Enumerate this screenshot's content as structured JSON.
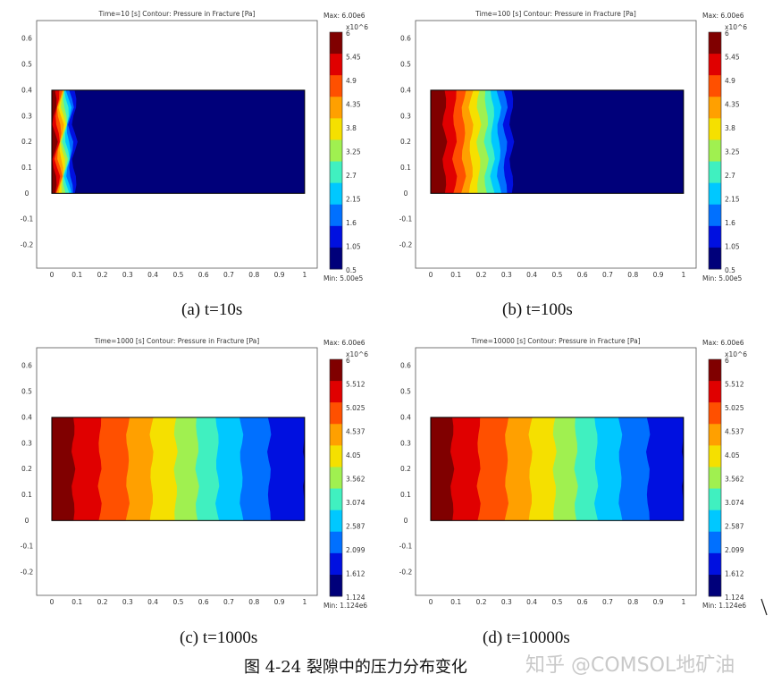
{
  "chart_data": [
    {
      "type": "heatmap",
      "title": "Time=10 [s]   Contour: Pressure in Fracture [Pa]",
      "caption": "(a) t=10s",
      "time_s": 10,
      "max_label": "Max: 6.00e6",
      "min_label": "Min: 5.00e5",
      "scale_exponent": "x10^6",
      "colorbar_ticks": [
        "6",
        "5.45",
        "4.9",
        "4.35",
        "3.8",
        "3.25",
        "2.7",
        "2.15",
        "1.6",
        "1.05",
        "0.5"
      ],
      "xticks": [
        "0",
        "0.1",
        "0.2",
        "0.3",
        "0.4",
        "0.5",
        "0.6",
        "0.7",
        "0.8",
        "0.9",
        "1"
      ],
      "yticks": [
        "0.6",
        "0.5",
        "0.4",
        "0.3",
        "0.2",
        "0.1",
        "0",
        "-0.1",
        "-0.2"
      ],
      "xlim": [
        -0.06,
        1.05
      ],
      "ylim": [
        -0.29,
        0.67
      ],
      "domain_x": [
        0,
        1
      ],
      "domain_y": [
        0,
        0.4
      ],
      "band_edges_x": [
        0.012,
        0.022,
        0.03,
        0.038,
        0.045,
        0.052,
        0.06,
        0.067,
        0.076,
        0.09
      ],
      "front_wiggle": 0.012
    },
    {
      "type": "heatmap",
      "title": "Time=100 [s]   Contour: Pressure in Fracture [Pa]",
      "caption": "(b) t=100s",
      "time_s": 100,
      "max_label": "Max: 6.00e6",
      "min_label": "Min: 5.00e5",
      "scale_exponent": "x10^6",
      "colorbar_ticks": [
        "6",
        "5.45",
        "4.9",
        "4.35",
        "3.8",
        "3.25",
        "2.7",
        "2.15",
        "1.6",
        "1.05",
        "0.5"
      ],
      "xticks": [
        "0",
        "0.1",
        "0.2",
        "0.3",
        "0.4",
        "0.5",
        "0.6",
        "0.7",
        "0.8",
        "0.9",
        "1"
      ],
      "yticks": [
        "0.6",
        "0.5",
        "0.4",
        "0.3",
        "0.2",
        "0.1",
        "0",
        "-0.1",
        "-0.2"
      ],
      "xlim": [
        -0.06,
        1.05
      ],
      "ylim": [
        -0.29,
        0.67
      ],
      "domain_x": [
        0,
        1
      ],
      "domain_y": [
        0,
        0.4
      ],
      "band_edges_x": [
        0.055,
        0.095,
        0.13,
        0.16,
        0.19,
        0.22,
        0.245,
        0.27,
        0.295,
        0.32
      ],
      "front_wiggle": 0.01
    },
    {
      "type": "heatmap",
      "title": "Time=1000 [s]   Contour: Pressure in Fracture [Pa]",
      "caption": "(c) t=1000s",
      "time_s": 1000,
      "max_label": "Max: 6.00e6",
      "min_label": "Min: 1.124e6",
      "scale_exponent": "x10^6",
      "colorbar_ticks": [
        "6",
        "5.512",
        "5.025",
        "4.537",
        "4.05",
        "3.562",
        "3.074",
        "2.587",
        "2.099",
        "1.612",
        "1.124"
      ],
      "xticks": [
        "0",
        "0.1",
        "0.2",
        "0.3",
        "0.4",
        "0.5",
        "0.6",
        "0.7",
        "0.8",
        "0.9",
        "1"
      ],
      "yticks": [
        "0.6",
        "0.5",
        "0.4",
        "0.3",
        "0.2",
        "0.1",
        "0",
        "-0.1",
        "-0.2"
      ],
      "xlim": [
        -0.06,
        1.05
      ],
      "ylim": [
        -0.29,
        0.67
      ],
      "domain_x": [
        0,
        1
      ],
      "domain_y": [
        0,
        0.4
      ],
      "band_edges_x": [
        0.085,
        0.19,
        0.3,
        0.395,
        0.49,
        0.575,
        0.655,
        0.75,
        0.86,
        1.0
      ],
      "front_wiggle": 0.008
    },
    {
      "type": "heatmap",
      "title": "Time=10000 [s]   Contour: Pressure in Fracture [Pa]",
      "caption": "(d) t=10000s",
      "time_s": 10000,
      "max_label": "Max: 6.00e6",
      "min_label": "Min: 1.124e6",
      "scale_exponent": "x10^6",
      "colorbar_ticks": [
        "6",
        "5.512",
        "5.025",
        "4.537",
        "4.05",
        "3.562",
        "3.074",
        "2.587",
        "2.099",
        "1.612",
        "1.124"
      ],
      "xticks": [
        "0",
        "0.1",
        "0.2",
        "0.3",
        "0.4",
        "0.5",
        "0.6",
        "0.7",
        "0.8",
        "0.9",
        "1"
      ],
      "yticks": [
        "0.6",
        "0.5",
        "0.4",
        "0.3",
        "0.2",
        "0.1",
        "0",
        "-0.1",
        "-0.2"
      ],
      "xlim": [
        -0.06,
        1.05
      ],
      "ylim": [
        -0.29,
        0.67
      ],
      "domain_x": [
        0,
        1
      ],
      "domain_y": [
        0,
        0.4
      ],
      "band_edges_x": [
        0.085,
        0.19,
        0.3,
        0.395,
        0.49,
        0.575,
        0.655,
        0.75,
        0.86,
        1.0
      ],
      "front_wiggle": 0.008
    }
  ],
  "colormap": [
    "#800000",
    "#e00000",
    "#ff5000",
    "#ffa000",
    "#f5e000",
    "#a0f050",
    "#40f0c0",
    "#00c8ff",
    "#0070ff",
    "#0010e0",
    "#00007a"
  ],
  "figure_caption": "图 4-24 裂隙中的压力分布变化",
  "watermark": "知乎 @COMSOL地矿油"
}
